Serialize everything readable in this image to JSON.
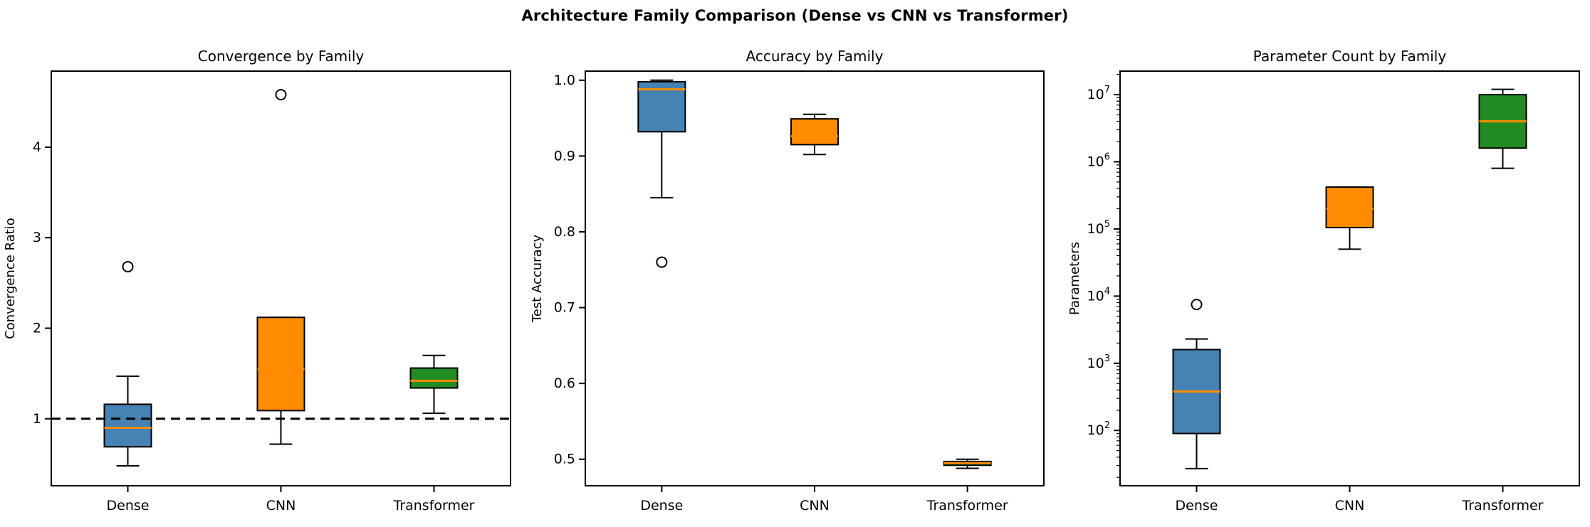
{
  "figure": {
    "suptitle": "Architecture Family Comparison (Dense vs CNN vs Transformer)"
  },
  "palette": {
    "dense_blue": "#4682B4",
    "cnn_orange": "#FF8C00",
    "transformer_green": "#228B22",
    "median_orange": "#FF8C00",
    "box_edge": "#000000",
    "refline_black": "#000000"
  },
  "chart_data": [
    {
      "type": "box",
      "title": "Convergence by Family",
      "ylabel": "Convergence Ratio",
      "categories": [
        "Dense",
        "CNN",
        "Transformer"
      ],
      "yscale": "linear",
      "ylim": [
        0.26,
        4.84
      ],
      "grid": false,
      "yticks": [
        {
          "v": 1,
          "label": "1"
        },
        {
          "v": 2,
          "label": "2"
        },
        {
          "v": 3,
          "label": "3"
        },
        {
          "v": 4,
          "label": "4"
        }
      ],
      "refline": {
        "y": 1.0,
        "style": "dashed",
        "color": "#000000"
      },
      "boxes": [
        {
          "category": "Dense",
          "color": "#4682B4",
          "whislo": 0.48,
          "q1": 0.69,
          "med": 0.9,
          "q3": 1.16,
          "whishi": 1.47,
          "outliers": [
            2.68
          ]
        },
        {
          "category": "CNN",
          "color": "#FF8C00",
          "whislo": 0.72,
          "q1": 1.09,
          "med": 1.55,
          "q3": 2.12,
          "whishi": 2.12,
          "outliers": [
            4.58
          ]
        },
        {
          "category": "Transformer",
          "color": "#228B22",
          "whislo": 1.06,
          "q1": 1.34,
          "med": 1.42,
          "q3": 1.56,
          "whishi": 1.7,
          "outliers": []
        }
      ]
    },
    {
      "type": "box",
      "title": "Accuracy by Family",
      "ylabel": "Test Accuracy",
      "categories": [
        "Dense",
        "CNN",
        "Transformer"
      ],
      "yscale": "linear",
      "ylim": [
        0.465,
        1.012
      ],
      "grid": false,
      "yticks": [
        {
          "v": 0.5,
          "label": "0.5"
        },
        {
          "v": 0.6,
          "label": "0.6"
        },
        {
          "v": 0.7,
          "label": "0.7"
        },
        {
          "v": 0.8,
          "label": "0.8"
        },
        {
          "v": 0.9,
          "label": "0.9"
        },
        {
          "v": 1.0,
          "label": "1.0"
        }
      ],
      "boxes": [
        {
          "category": "Dense",
          "color": "#4682B4",
          "whislo": 0.845,
          "q1": 0.932,
          "med": 0.988,
          "q3": 0.998,
          "whishi": 1.0,
          "outliers": [
            0.76
          ]
        },
        {
          "category": "CNN",
          "color": "#FF8C00",
          "whislo": 0.902,
          "q1": 0.915,
          "med": 0.926,
          "q3": 0.949,
          "whishi": 0.955,
          "outliers": []
        },
        {
          "category": "Transformer",
          "color": "#228B22",
          "whislo": 0.488,
          "q1": 0.492,
          "med": 0.495,
          "q3": 0.497,
          "whishi": 0.5,
          "outliers": []
        }
      ]
    },
    {
      "type": "box",
      "title": "Parameter Count by Family",
      "ylabel": "Parameters",
      "categories": [
        "Dense",
        "CNN",
        "Transformer"
      ],
      "yscale": "log",
      "ylim": [
        15,
        22400000
      ],
      "grid": false,
      "ytick_exponents": [
        2,
        3,
        4,
        5,
        6,
        7
      ],
      "boxes": [
        {
          "category": "Dense",
          "color": "#4682B4",
          "whislo": 27,
          "q1": 90,
          "med": 380,
          "q3": 1600,
          "whishi": 2300,
          "outliers": [
            7500
          ]
        },
        {
          "category": "CNN",
          "color": "#FF8C00",
          "whislo": 50000,
          "q1": 105000,
          "med": 200000,
          "q3": 420000,
          "whishi": 420000,
          "outliers": []
        },
        {
          "category": "Transformer",
          "color": "#228B22",
          "whislo": 800000,
          "q1": 1600000,
          "med": 4000000,
          "q3": 10000000,
          "whishi": 12000000,
          "outliers": []
        }
      ]
    }
  ]
}
